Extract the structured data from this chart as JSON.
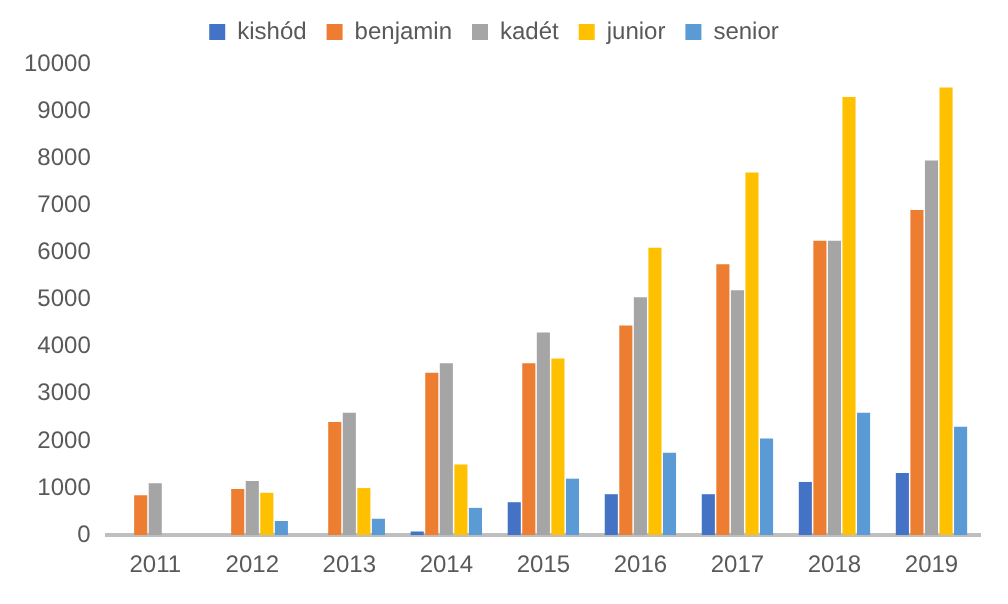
{
  "chart_data": {
    "type": "bar",
    "categories": [
      "2011",
      "2012",
      "2013",
      "2014",
      "2015",
      "2016",
      "2017",
      "2018",
      "2019"
    ],
    "series": [
      {
        "name": "kishód",
        "color": "#4472c4",
        "values": [
          0,
          0,
          0,
          80,
          700,
          870,
          870,
          1130,
          1320
        ]
      },
      {
        "name": "benjamin",
        "color": "#ed7d31",
        "values": [
          850,
          980,
          2400,
          3450,
          3650,
          4450,
          5750,
          6250,
          6900
        ]
      },
      {
        "name": "kadét",
        "color": "#a5a5a5",
        "values": [
          1100,
          1150,
          2600,
          3650,
          4300,
          5050,
          5200,
          6250,
          7950
        ]
      },
      {
        "name": "junior",
        "color": "#ffc000",
        "values": [
          0,
          900,
          1000,
          1500,
          3750,
          6100,
          7700,
          9300,
          9500
        ]
      },
      {
        "name": "senior",
        "color": "#5b9bd5",
        "values": [
          0,
          300,
          350,
          580,
          1200,
          1750,
          2050,
          2600,
          2300
        ]
      }
    ],
    "ylim": [
      0,
      10000
    ],
    "yticks": [
      0,
      1000,
      2000,
      3000,
      4000,
      5000,
      6000,
      7000,
      8000,
      9000,
      10000
    ],
    "grid": false,
    "legend": "top"
  }
}
